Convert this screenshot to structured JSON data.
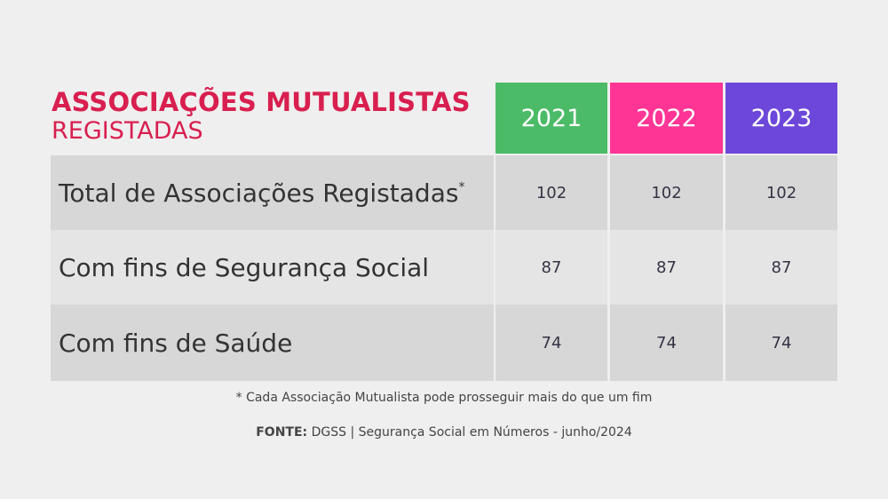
{
  "title": {
    "main": "ASSOCIAÇÕES MUTUALISTAS",
    "sub": "REGISTADAS"
  },
  "colors": {
    "title": "#d81f4f",
    "year_2021": "#4cbb67",
    "year_2022": "#ff3596",
    "year_2023": "#6d47d9"
  },
  "chart_data": {
    "type": "table",
    "columns": [
      "2021",
      "2022",
      "2023"
    ],
    "rows": [
      {
        "label": "Total de Associações Registadas",
        "marker": "*",
        "values": [
          "102",
          "102",
          "102"
        ]
      },
      {
        "label": "Com fins de Segurança Social",
        "marker": "",
        "values": [
          "87",
          "87",
          "87"
        ]
      },
      {
        "label": "Com fins de Saúde",
        "marker": "",
        "values": [
          "74",
          "74",
          "74"
        ]
      }
    ]
  },
  "footnote": "* Cada Associação Mutualista pode prosseguir mais do que um fim",
  "source": {
    "label": "FONTE:",
    "text": " DGSS | Segurança Social em Números - junho/2024"
  }
}
